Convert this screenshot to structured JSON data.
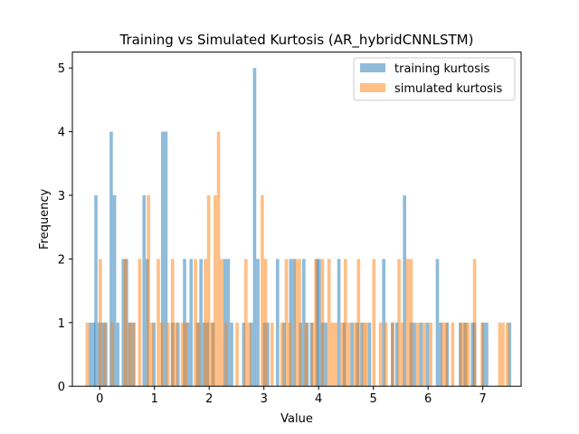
{
  "chart_data": {
    "type": "bar",
    "title": "Training vs Simulated Kurtosis (AR_hybridCNNLSTM)",
    "xlabel": "Value",
    "ylabel": "Frequency",
    "xlim": [
      -0.5,
      7.7
    ],
    "ylim": [
      0,
      5.25
    ],
    "xticks": [
      0,
      1,
      2,
      3,
      4,
      5,
      6,
      7
    ],
    "yticks": [
      0,
      1,
      2,
      3,
      4,
      5
    ],
    "bin_width": 0.06,
    "legend_position": "top-right",
    "series": [
      {
        "name": "training kurtosis",
        "color": "#1f77b4",
        "alpha": 0.5,
        "bins": [
          [
            -0.2,
            1
          ],
          [
            -0.14,
            1
          ],
          [
            -0.1,
            3
          ],
          [
            -0.04,
            1
          ],
          [
            0.02,
            1
          ],
          [
            0.08,
            1
          ],
          [
            0.18,
            4
          ],
          [
            0.24,
            3
          ],
          [
            0.3,
            1
          ],
          [
            0.4,
            2
          ],
          [
            0.46,
            2
          ],
          [
            0.52,
            1
          ],
          [
            0.58,
            1
          ],
          [
            0.78,
            3
          ],
          [
            0.84,
            2
          ],
          [
            0.96,
            1
          ],
          [
            1.12,
            4
          ],
          [
            1.18,
            4
          ],
          [
            1.3,
            1
          ],
          [
            1.4,
            1
          ],
          [
            1.52,
            2
          ],
          [
            1.58,
            1
          ],
          [
            1.64,
            2
          ],
          [
            1.76,
            1
          ],
          [
            1.82,
            2
          ],
          [
            1.88,
            1
          ],
          [
            1.94,
            1
          ],
          [
            2.04,
            1
          ],
          [
            2.26,
            2
          ],
          [
            2.32,
            2
          ],
          [
            2.38,
            1
          ],
          [
            2.6,
            1
          ],
          [
            2.74,
            1
          ],
          [
            2.8,
            5
          ],
          [
            2.86,
            2
          ],
          [
            2.98,
            1
          ],
          [
            3.04,
            1
          ],
          [
            3.22,
            2
          ],
          [
            3.34,
            1
          ],
          [
            3.46,
            2
          ],
          [
            3.52,
            2
          ],
          [
            3.64,
            1
          ],
          [
            3.7,
            2
          ],
          [
            3.76,
            1
          ],
          [
            3.84,
            1
          ],
          [
            3.94,
            2
          ],
          [
            3.98,
            2
          ],
          [
            4.04,
            1
          ],
          [
            4.1,
            1
          ],
          [
            4.34,
            2
          ],
          [
            4.44,
            1
          ],
          [
            4.58,
            1
          ],
          [
            4.68,
            1
          ],
          [
            4.76,
            1
          ],
          [
            4.9,
            1
          ],
          [
            5.16,
            2
          ],
          [
            5.32,
            1
          ],
          [
            5.4,
            1
          ],
          [
            5.54,
            3
          ],
          [
            5.66,
            1
          ],
          [
            5.72,
            1
          ],
          [
            5.84,
            1
          ],
          [
            5.96,
            1
          ],
          [
            6.14,
            2
          ],
          [
            6.2,
            1
          ],
          [
            6.32,
            1
          ],
          [
            6.56,
            1
          ],
          [
            6.64,
            1
          ],
          [
            6.78,
            1
          ],
          [
            6.82,
            1
          ],
          [
            6.98,
            1
          ],
          [
            7.04,
            1
          ],
          [
            7.46,
            1
          ]
        ]
      },
      {
        "name": "simulated kurtosis",
        "color": "#ff7f0e",
        "alpha": 0.5,
        "bins": [
          [
            -0.26,
            1
          ],
          [
            -0.02,
            2
          ],
          [
            0.06,
            1
          ],
          [
            0.2,
            1
          ],
          [
            0.44,
            2
          ],
          [
            0.52,
            1
          ],
          [
            0.6,
            1
          ],
          [
            0.7,
            2
          ],
          [
            0.86,
            3
          ],
          [
            0.92,
            1
          ],
          [
            1.04,
            2
          ],
          [
            1.1,
            1
          ],
          [
            1.22,
            1
          ],
          [
            1.3,
            2
          ],
          [
            1.36,
            1
          ],
          [
            1.48,
            1
          ],
          [
            1.54,
            1
          ],
          [
            1.72,
            2
          ],
          [
            1.78,
            1
          ],
          [
            1.9,
            2
          ],
          [
            1.96,
            3
          ],
          [
            2.02,
            1
          ],
          [
            2.08,
            3
          ],
          [
            2.14,
            4
          ],
          [
            2.2,
            2
          ],
          [
            2.28,
            1
          ],
          [
            2.48,
            1
          ],
          [
            2.64,
            2
          ],
          [
            2.7,
            1
          ],
          [
            2.94,
            3
          ],
          [
            3.0,
            2
          ],
          [
            3.12,
            1
          ],
          [
            3.3,
            1
          ],
          [
            3.38,
            2
          ],
          [
            3.44,
            1
          ],
          [
            3.56,
            2
          ],
          [
            3.62,
            2
          ],
          [
            3.74,
            1
          ],
          [
            3.86,
            1
          ],
          [
            3.92,
            2
          ],
          [
            4.04,
            2
          ],
          [
            4.16,
            2
          ],
          [
            4.22,
            1
          ],
          [
            4.28,
            1
          ],
          [
            4.4,
            1
          ],
          [
            4.46,
            2
          ],
          [
            4.52,
            1
          ],
          [
            4.64,
            1
          ],
          [
            4.7,
            2
          ],
          [
            4.8,
            1
          ],
          [
            4.84,
            1
          ],
          [
            4.98,
            2
          ],
          [
            5.1,
            1
          ],
          [
            5.2,
            1
          ],
          [
            5.32,
            1
          ],
          [
            5.44,
            2
          ],
          [
            5.5,
            1
          ],
          [
            5.6,
            2
          ],
          [
            5.66,
            2
          ],
          [
            5.78,
            1
          ],
          [
            5.9,
            1
          ],
          [
            6.02,
            1
          ],
          [
            6.24,
            1
          ],
          [
            6.3,
            1
          ],
          [
            6.42,
            1
          ],
          [
            6.58,
            1
          ],
          [
            6.66,
            1
          ],
          [
            6.7,
            1
          ],
          [
            6.82,
            2
          ],
          [
            6.96,
            1
          ],
          [
            7.28,
            1
          ],
          [
            7.34,
            1
          ],
          [
            7.42,
            1
          ]
        ]
      }
    ]
  }
}
